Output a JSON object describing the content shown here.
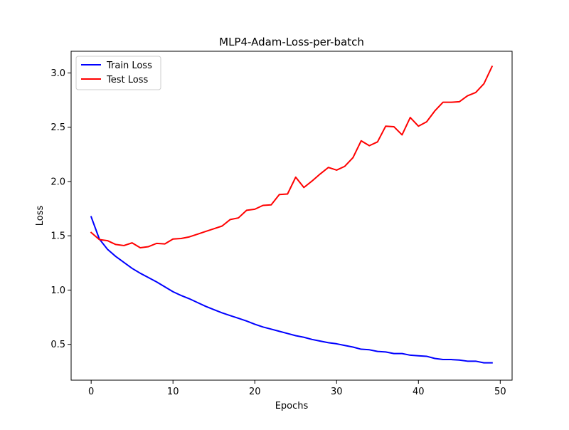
{
  "chart_data": {
    "type": "line",
    "title": "MLP4-Adam-Loss-per-batch",
    "xlabel": "Epochs",
    "ylabel": "Loss",
    "xlim": [
      -2.45,
      51.45
    ],
    "ylim": [
      0.17,
      3.2
    ],
    "xticks": [
      0,
      10,
      20,
      30,
      40,
      50
    ],
    "yticks": [
      0.5,
      1.0,
      1.5,
      2.0,
      2.5,
      3.0
    ],
    "xtick_labels": [
      "0",
      "10",
      "20",
      "30",
      "40",
      "50"
    ],
    "ytick_labels": [
      "0.5",
      "1.0",
      "1.5",
      "2.0",
      "2.5",
      "3.0"
    ],
    "grid": false,
    "legend_position": "upper-left",
    "x": [
      0,
      1,
      2,
      3,
      4,
      5,
      6,
      7,
      8,
      9,
      10,
      11,
      12,
      13,
      14,
      15,
      16,
      17,
      18,
      19,
      20,
      21,
      22,
      23,
      24,
      25,
      26,
      27,
      28,
      29,
      30,
      31,
      32,
      33,
      34,
      35,
      36,
      37,
      38,
      39,
      40,
      41,
      42,
      43,
      44,
      45,
      46,
      47,
      48,
      49
    ],
    "series": [
      {
        "name": "Train Loss",
        "color": "#0000ff",
        "values": [
          1.675,
          1.47,
          1.375,
          1.31,
          1.255,
          1.2,
          1.155,
          1.115,
          1.075,
          1.03,
          0.985,
          0.95,
          0.92,
          0.885,
          0.85,
          0.82,
          0.79,
          0.765,
          0.74,
          0.715,
          0.685,
          0.66,
          0.64,
          0.62,
          0.6,
          0.58,
          0.565,
          0.545,
          0.53,
          0.515,
          0.505,
          0.49,
          0.475,
          0.455,
          0.45,
          0.435,
          0.43,
          0.415,
          0.415,
          0.4,
          0.395,
          0.39,
          0.37,
          0.36,
          0.36,
          0.355,
          0.345,
          0.345,
          0.33,
          0.33
        ]
      },
      {
        "name": "Test Loss",
        "color": "#ff0000",
        "values": [
          1.53,
          1.465,
          1.455,
          1.42,
          1.41,
          1.435,
          1.39,
          1.4,
          1.43,
          1.425,
          1.47,
          1.475,
          1.49,
          1.515,
          1.54,
          1.565,
          1.59,
          1.65,
          1.665,
          1.735,
          1.745,
          1.78,
          1.785,
          1.88,
          1.885,
          2.04,
          1.945,
          2.005,
          2.07,
          2.13,
          2.105,
          2.14,
          2.22,
          2.375,
          2.33,
          2.365,
          2.51,
          2.505,
          2.43,
          2.59,
          2.51,
          2.55,
          2.65,
          2.73,
          2.73,
          2.735,
          2.79,
          2.82,
          2.9,
          3.06
        ]
      }
    ]
  }
}
